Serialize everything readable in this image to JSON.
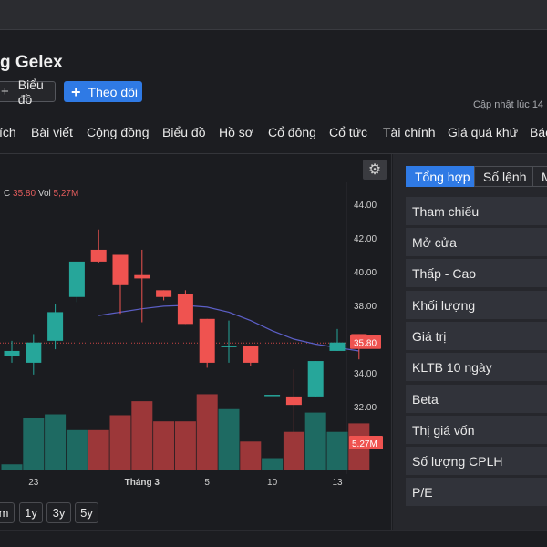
{
  "page": {
    "title": "g Gelex",
    "chart_button": "Biểu đồ",
    "follow_button": "Theo dõi",
    "updated": "Cập nhật lúc 14"
  },
  "nav": [
    "ích",
    "Bài viết",
    "Cộng đồng",
    "Biểu đồ",
    "Hồ sơ",
    "Cổ đông",
    "Cổ tức",
    "Tài chính",
    "Giá quá khứ",
    "Báo"
  ],
  "chart_legend": {
    "c_label": "C",
    "c_value": "35.80",
    "vol_label": "Vol",
    "vol_value": "5,27M"
  },
  "range_buttons": [
    "m",
    "1y",
    "3y",
    "5y"
  ],
  "side_tabs": [
    "Tổng hợp",
    "Số lệnh",
    "M"
  ],
  "side_rows": [
    "Tham chiếu",
    "Mở cửa",
    "Thấp - Cao",
    "Khối lượng",
    "Giá trị",
    "KLTB 10 ngày",
    "Beta",
    "Thị giá vốn",
    "Số lượng CPLH",
    "P/E"
  ],
  "colors": {
    "up": "#26a69a",
    "down": "#ef5350",
    "accent": "#2f7ae5",
    "ma": "#5c5fc7"
  },
  "chart_data": {
    "type": "candlestick",
    "y_ticks": [
      "44.00",
      "42.00",
      "40.00",
      "38.00",
      "36.00",
      "34.00",
      "32.00"
    ],
    "y_range": [
      31.2,
      44.6
    ],
    "x_ticks": [
      {
        "label": "23",
        "index": 1
      },
      {
        "label": "Tháng 3",
        "index": 6
      },
      {
        "label": "5",
        "index": 9
      },
      {
        "label": "10",
        "index": 12
      },
      {
        "label": "13",
        "index": 15
      }
    ],
    "last_price_label": "35.80",
    "volume_label": "5.27M",
    "candles": [
      {
        "o": 35.0,
        "h": 35.9,
        "l": 34.6,
        "c": 35.3
      },
      {
        "o": 34.6,
        "h": 36.3,
        "l": 33.9,
        "c": 35.8
      },
      {
        "o": 35.9,
        "h": 38.1,
        "l": 35.4,
        "c": 37.6
      },
      {
        "o": 38.5,
        "h": 40.5,
        "l": 38.2,
        "c": 40.6
      },
      {
        "o": 41.3,
        "h": 42.5,
        "l": 40.5,
        "c": 40.6
      },
      {
        "o": 41.0,
        "h": 41.0,
        "l": 37.5,
        "c": 39.2
      },
      {
        "o": 39.8,
        "h": 41.3,
        "l": 37.0,
        "c": 39.6
      },
      {
        "o": 38.9,
        "h": 38.9,
        "l": 38.3,
        "c": 38.5
      },
      {
        "o": 38.7,
        "h": 38.9,
        "l": 36.9,
        "c": 36.9
      },
      {
        "o": 37.2,
        "h": 37.2,
        "l": 34.3,
        "c": 34.6
      },
      {
        "o": 35.6,
        "h": 37.1,
        "l": 34.6,
        "c": 35.6
      },
      {
        "o": 35.6,
        "h": 35.6,
        "l": 34.4,
        "c": 34.6
      },
      {
        "o": 32.7,
        "h": 32.7,
        "l": 32.7,
        "c": 32.7
      },
      {
        "o": 32.6,
        "h": 34.2,
        "l": 30.5,
        "c": 32.1
      },
      {
        "o": 32.6,
        "h": 34.7,
        "l": 32.6,
        "c": 34.7
      },
      {
        "o": 35.3,
        "h": 36.6,
        "l": 35.3,
        "c": 35.8
      },
      {
        "o": 36.3,
        "h": 36.3,
        "l": 34.8,
        "c": 35.8
      }
    ],
    "volumes": [
      0.6,
      5.9,
      6.3,
      4.5,
      4.5,
      6.2,
      7.8,
      5.5,
      5.5,
      8.6,
      6.9,
      3.2,
      1.3,
      4.3,
      6.5,
      4.3,
      5.27
    ],
    "volume_max": 10,
    "ma": [
      null,
      null,
      null,
      null,
      37.4,
      37.6,
      37.8,
      37.95,
      38.0,
      37.9,
      37.6,
      37.1,
      36.5,
      36.0,
      35.7,
      35.5,
      35.3
    ]
  }
}
